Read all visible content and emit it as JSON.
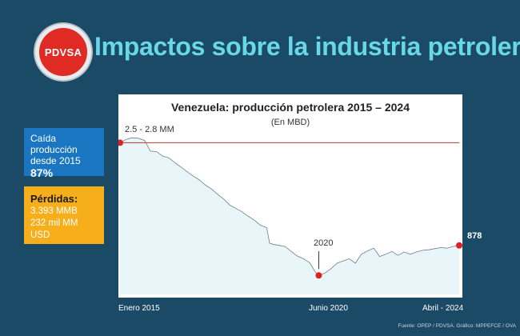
{
  "logo": {
    "text": "PDVSA"
  },
  "headline": "Impactos sobre la industria petrolera",
  "sidebar": {
    "drop_box": {
      "line1": "Caída producción",
      "line2": "desde 2015",
      "value": "87%",
      "color": "#1a76c0"
    },
    "losses_box": {
      "title": "Pérdidas:",
      "line1": "3.393 MMB",
      "line2": "232 mil MM USD",
      "color": "#f6ae1b"
    }
  },
  "footer": {
    "source": "Fuente: OPEP / PDVSA. Gráfico: MPPEFCE / OVA"
  },
  "chart_data": {
    "type": "area",
    "title": "Venezuela: producción petrolera 2015 – 2024",
    "subtitle": "(En MBD)",
    "x_tick_labels": [
      "Enero 2015",
      "Junio 2020",
      "Abril - 2024"
    ],
    "reference_line": {
      "label": "2.5 - 2.8 MM",
      "y": 2720
    },
    "highlights": [
      {
        "x": 2015.0,
        "y": 2720,
        "label": ""
      },
      {
        "x": 2020.42,
        "y": 340,
        "label": "2020"
      },
      {
        "x": 2024.25,
        "y": 878,
        "label": "878"
      }
    ],
    "series": [
      {
        "x": [
          2015.0,
          2015.17,
          2015.33,
          2015.5,
          2015.67,
          2015.83,
          2016.0,
          2016.17,
          2016.33,
          2016.5,
          2016.67,
          2016.83,
          2017.0,
          2017.17,
          2017.33,
          2017.5,
          2017.67,
          2017.83,
          2018.0,
          2018.17,
          2018.33,
          2018.5,
          2018.67,
          2018.83,
          2019.0,
          2019.08,
          2019.17,
          2019.33,
          2019.5,
          2019.67,
          2019.83,
          2020.0,
          2020.17,
          2020.33,
          2020.42,
          2020.58,
          2020.75,
          2020.92,
          2021.08,
          2021.25,
          2021.42,
          2021.58,
          2021.75,
          2021.92,
          2022.08,
          2022.25,
          2022.42,
          2022.58,
          2022.75,
          2022.92,
          2023.08,
          2023.25,
          2023.42,
          2023.58,
          2023.75,
          2023.92,
          2024.08,
          2024.25
        ],
        "y": [
          2720,
          2780,
          2810,
          2800,
          2760,
          2570,
          2560,
          2480,
          2450,
          2360,
          2280,
          2200,
          2120,
          2050,
          1960,
          1890,
          1790,
          1710,
          1600,
          1540,
          1480,
          1400,
          1330,
          1240,
          1200,
          920,
          900,
          880,
          860,
          770,
          690,
          640,
          570,
          400,
          340,
          380,
          460,
          560,
          600,
          640,
          560,
          720,
          780,
          830,
          680,
          720,
          770,
          700,
          760,
          720,
          760,
          790,
          800,
          820,
          840,
          830,
          860,
          878
        ]
      }
    ],
    "xlim": [
      2015.0,
      2024.25
    ],
    "ylim": [
      0,
      3300
    ],
    "grid": false,
    "colors": {
      "area_fill": "#e8f6f9",
      "area_stroke": "#6f7f89",
      "reference_line": "#c0392b",
      "marker": "#e02020"
    }
  }
}
